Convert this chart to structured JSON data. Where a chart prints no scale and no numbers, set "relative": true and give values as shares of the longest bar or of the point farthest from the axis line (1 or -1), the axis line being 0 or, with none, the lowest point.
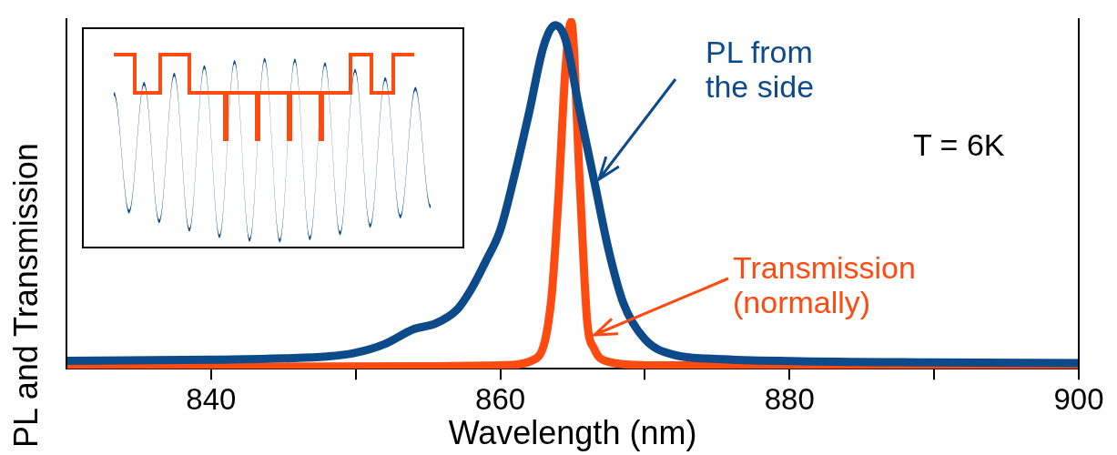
{
  "chart_data": {
    "type": "line",
    "relative": true,
    "xlabel": "Wavelength (nm)",
    "ylabel": "PL and Transmission",
    "xlim": [
      830,
      900
    ],
    "xticks": [
      840,
      {
        "value": 850,
        "label": null
      },
      860,
      {
        "value": 870,
        "label": null
      },
      880,
      {
        "value": 890,
        "label": null
      },
      900
    ],
    "grid": false,
    "legend": false,
    "marker": "none",
    "line_style": "solid",
    "annotations": [
      "T = 6K"
    ],
    "series": [
      {
        "name": "PL from the side",
        "color": "#0d4a8a",
        "x": [
          830,
          840,
          845,
          848,
          850,
          852,
          854,
          855.5,
          857,
          858,
          859,
          860,
          861,
          862,
          863,
          863.8,
          864.5,
          865.5,
          866.5,
          867.5,
          868.5,
          870,
          872,
          875,
          880,
          890,
          900
        ],
        "values": [
          0.023,
          0.026,
          0.03,
          0.035,
          0.046,
          0.071,
          0.114,
          0.13,
          0.17,
          0.23,
          0.31,
          0.4,
          0.56,
          0.74,
          0.93,
          0.99,
          0.95,
          0.74,
          0.54,
          0.34,
          0.19,
          0.085,
          0.04,
          0.028,
          0.022,
          0.018,
          0.016
        ]
      },
      {
        "name": "Transmission (normally)",
        "color": "#ff4a10",
        "x": [
          830,
          855,
          860,
          862.5,
          863.5,
          864,
          864.5,
          864.9,
          865.5,
          866,
          866.5,
          867.5,
          870,
          900
        ],
        "values": [
          0.005,
          0.007,
          0.01,
          0.03,
          0.19,
          0.48,
          0.86,
          1,
          0.53,
          0.14,
          0.057,
          0.02,
          0.01,
          0.006
        ]
      }
    ]
  }
}
